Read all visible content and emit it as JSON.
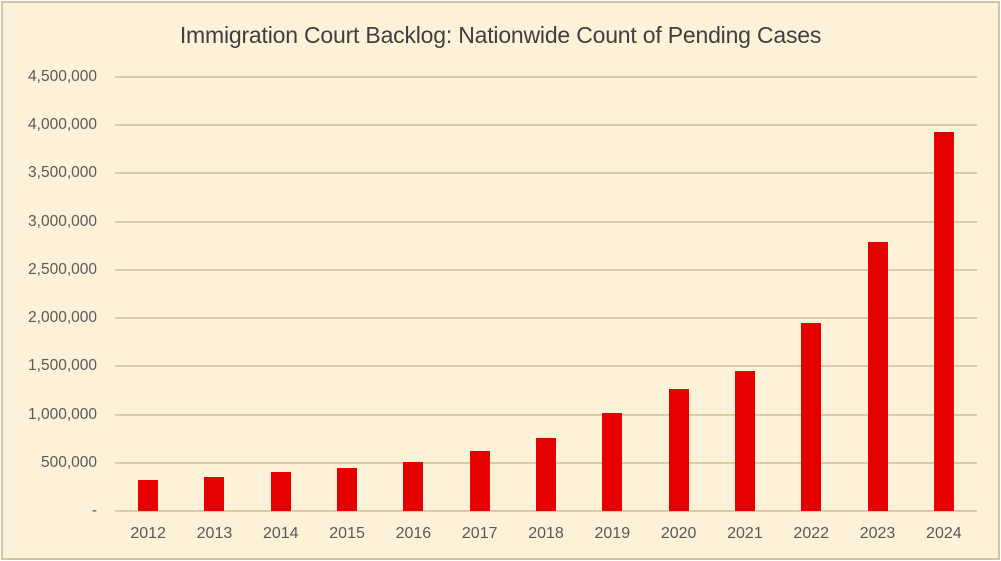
{
  "chart_data": {
    "type": "bar",
    "title": "Immigration Court Backlog: Nationwide Count of Pending Cases",
    "categories": [
      "2012",
      "2013",
      "2014",
      "2015",
      "2016",
      "2017",
      "2018",
      "2019",
      "2020",
      "2021",
      "2022",
      "2023",
      "2024"
    ],
    "values": [
      325000,
      350000,
      400000,
      445000,
      510000,
      620000,
      755000,
      1020000,
      1260000,
      1450000,
      1950000,
      2790000,
      3930000
    ],
    "xlabel": "",
    "ylabel": "",
    "ylim": [
      0,
      4500000
    ],
    "ytick_step": 500000,
    "ytick_labels": [
      "-",
      "500,000",
      "1,000,000",
      "1,500,000",
      "2,000,000",
      "2,500,000",
      "3,000,000",
      "3,500,000",
      "4,000,000",
      "4,500,000"
    ],
    "grid": true,
    "legend": false,
    "colors": {
      "bar": "#e60000",
      "background": "#fdf2d8",
      "border": "#d3c4a6",
      "gridline": "#d9caaa",
      "title_text": "#3f3f3f",
      "label_text": "#595959"
    }
  }
}
